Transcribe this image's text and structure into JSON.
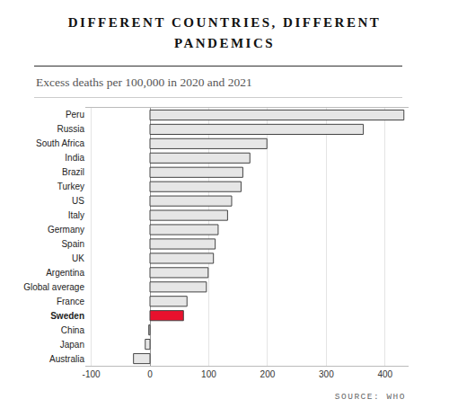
{
  "chart_data": {
    "type": "bar",
    "orientation": "horizontal",
    "title": "DIFFERENT COUNTRIES, DIFFERENT PANDEMICS",
    "subtitle": "Excess deaths per 100,000 in 2020 and 2021",
    "annotations": [
      "SOURCE: WHO"
    ],
    "categories": [
      "Peru",
      "Russia",
      "South Africa",
      "India",
      "Brazil",
      "Turkey",
      "US",
      "Italy",
      "Germany",
      "Spain",
      "UK",
      "Argentina",
      "Global average",
      "France",
      "Sweden",
      "China",
      "Japan",
      "Australia"
    ],
    "values": [
      432,
      363,
      199,
      170,
      158,
      155,
      139,
      132,
      116,
      111,
      108,
      99,
      96,
      63,
      57,
      -2,
      -8,
      -28
    ],
    "colors": [
      "#e6e6e6",
      "#e6e6e6",
      "#e6e6e6",
      "#e6e6e6",
      "#e6e6e6",
      "#e6e6e6",
      "#e6e6e6",
      "#e6e6e6",
      "#e6e6e6",
      "#e6e6e6",
      "#e6e6e6",
      "#e6e6e6",
      "#e6e6e6",
      "#e6e6e6",
      "#e8112d",
      "#e6e6e6",
      "#e6e6e6",
      "#e6e6e6"
    ],
    "xlim": [
      -110,
      440
    ],
    "xticks": [
      -100,
      0,
      100,
      200,
      300,
      400
    ],
    "grid": true
  }
}
